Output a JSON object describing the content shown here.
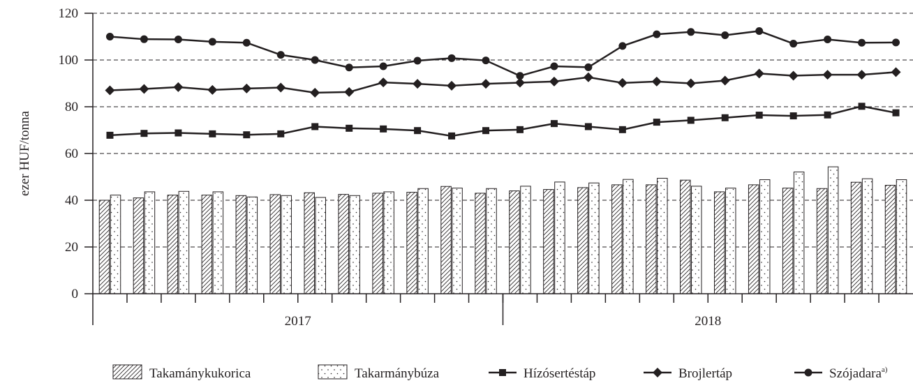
{
  "chart_data": {
    "type": "bar",
    "ylabel": "ezer HUF/tonna",
    "ylim": [
      0,
      120
    ],
    "yticks": [
      "0",
      "20",
      "40",
      "60",
      "80",
      "100",
      "120"
    ],
    "grid": "dashed-horizontal",
    "x_groups": [
      {
        "label": "2017",
        "months": 12
      },
      {
        "label": "2018",
        "months": 12
      }
    ],
    "bar_series": [
      {
        "name": "Takamánykukorica",
        "pattern": "hatch",
        "values": [
          40.0,
          41.0,
          42.2,
          42.2,
          42.0,
          42.4,
          43.2,
          42.5,
          43.0,
          43.4,
          45.9,
          43.0,
          44.0,
          44.6,
          45.4,
          46.6,
          46.6,
          48.6,
          43.6,
          46.6,
          45.2,
          45.0,
          47.7,
          46.4
        ]
      },
      {
        "name": "Takarmánybúza",
        "pattern": "dots",
        "values": [
          42.2,
          43.6,
          43.8,
          43.6,
          41.4,
          42.0,
          41.2,
          42.0,
          43.6,
          45.0,
          45.2,
          45.0,
          46.0,
          47.8,
          47.4,
          48.9,
          49.4,
          46.0,
          45.2,
          48.8,
          52.1,
          54.3,
          49.2,
          48.8
        ]
      }
    ],
    "line_series": [
      {
        "name": "Hízósertéstáp",
        "marker": "square",
        "values": [
          67.8,
          68.6,
          68.8,
          68.4,
          68.0,
          68.4,
          71.5,
          70.8,
          70.5,
          69.8,
          67.5,
          69.8,
          70.2,
          72.8,
          71.5,
          70.2,
          73.4,
          74.2,
          75.3,
          76.4,
          76.1,
          76.5,
          80.2,
          77.4
        ]
      },
      {
        "name": "Brojlertáp",
        "marker": "diamond",
        "values": [
          87.0,
          87.6,
          88.4,
          87.2,
          87.8,
          88.2,
          86.0,
          86.3,
          90.4,
          89.8,
          89.0,
          89.8,
          90.3,
          90.8,
          92.6,
          90.2,
          90.8,
          90.0,
          91.2,
          94.2,
          93.3,
          93.7,
          93.7,
          94.8
        ]
      },
      {
        "name": "Szójadara",
        "name_suffix": "a)",
        "marker": "circle",
        "values": [
          110.0,
          108.9,
          108.8,
          107.8,
          107.4,
          102.2,
          100.0,
          96.8,
          97.3,
          99.7,
          100.8,
          99.8,
          93.2,
          97.3,
          96.9,
          106.0,
          111.0,
          112.0,
          110.6,
          112.4,
          107.0,
          108.8,
          107.4,
          107.5
        ]
      }
    ]
  },
  "colors": {
    "ink": "#231f20",
    "grid": "#231f20",
    "bar_fill": "#ffffff"
  }
}
